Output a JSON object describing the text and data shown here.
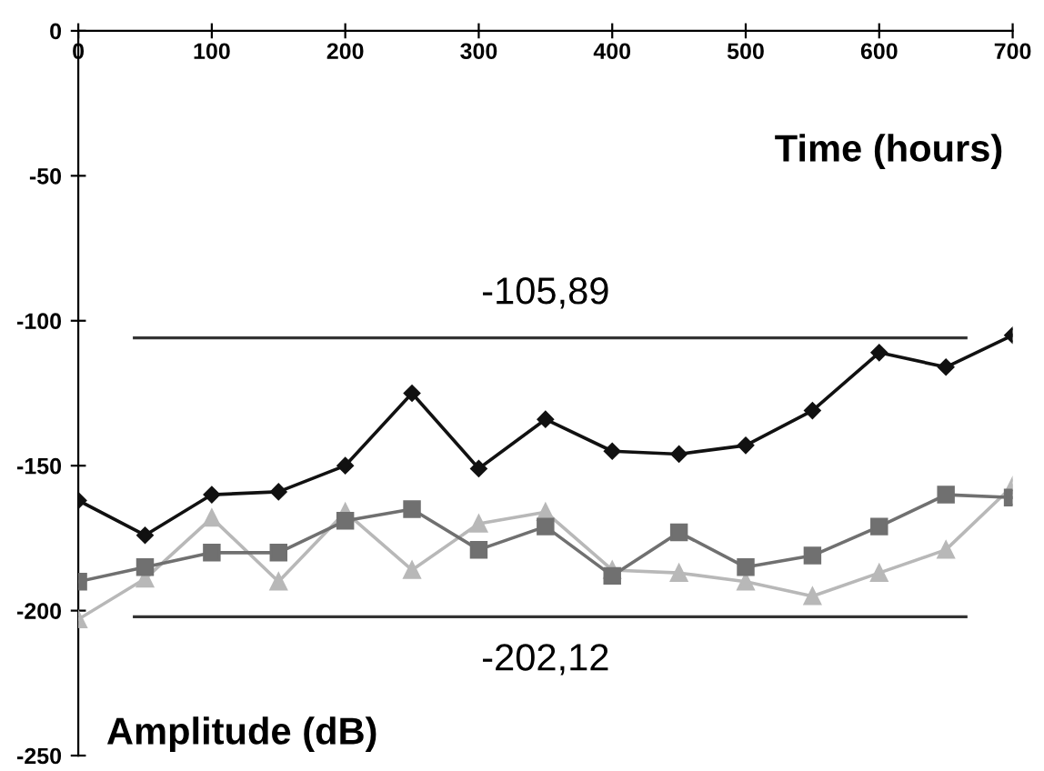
{
  "chart_data": {
    "type": "line",
    "xlabel": "Time (hours)",
    "ylabel": "Amplitude (dB)",
    "x": [
      0,
      50,
      100,
      150,
      200,
      250,
      300,
      350,
      400,
      450,
      500,
      550,
      600,
      650,
      700
    ],
    "series": [
      {
        "color": "#111111",
        "marker": "diamond",
        "values": [
          -162,
          -174,
          -160,
          -159,
          -150,
          -125,
          -151,
          -134,
          -145,
          -146,
          -143,
          -131,
          -111,
          -116,
          -105
        ]
      },
      {
        "color": "#707070",
        "marker": "square",
        "values": [
          -190,
          -185,
          -180,
          -180,
          -169,
          -165,
          -179,
          -171,
          -188,
          -173,
          -185,
          -181,
          -171,
          -160,
          -161
        ]
      },
      {
        "color": "#b8b8b8",
        "marker": "triangle",
        "values": [
          -203,
          -189,
          -168,
          -190,
          -166,
          -186,
          -170,
          -166,
          -186,
          -187,
          -190,
          -195,
          -187,
          -179,
          -157
        ]
      }
    ],
    "ref_lines": [
      {
        "axis": "y",
        "value": -105.89,
        "label": "-105,89",
        "color": "#333333"
      },
      {
        "axis": "y",
        "value": -202.12,
        "label": "-202,12",
        "color": "#333333"
      }
    ],
    "xlim": [
      0,
      700
    ],
    "xticks": [
      0,
      100,
      200,
      300,
      400,
      500,
      600,
      700
    ],
    "ylim": [
      -250,
      0
    ],
    "yticks": [
      -250,
      -200,
      -150,
      -100,
      -50,
      0
    ],
    "grid": false,
    "legend": false
  }
}
